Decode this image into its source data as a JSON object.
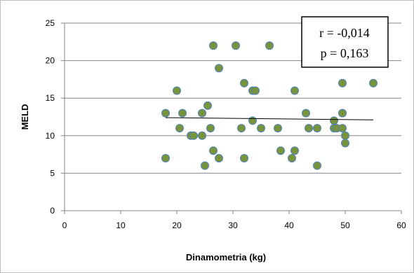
{
  "chart_data": {
    "type": "scatter",
    "title": "",
    "xlabel": "Dinamometria (kg)",
    "ylabel": "MELD",
    "xlim": [
      0,
      60
    ],
    "ylim": [
      0,
      25
    ],
    "x_ticks": [
      "0",
      "10",
      "20",
      "30",
      "40",
      "50",
      "60"
    ],
    "y_ticks": [
      "0",
      "5",
      "10",
      "15",
      "20",
      "25"
    ],
    "grid": "horizontal",
    "legend": "none",
    "marker_color": "#77933c",
    "marker_edge_color": "#4f81bd",
    "trendline": {
      "type": "linear",
      "x": [
        18,
        55
      ],
      "y": [
        12.4,
        12.1
      ],
      "color": "#000000"
    },
    "annotation": {
      "lines": [
        "r = -0,014",
        "p = 0,163"
      ],
      "placement": "top-right"
    },
    "points": [
      {
        "x": 18,
        "y": 13
      },
      {
        "x": 18,
        "y": 7
      },
      {
        "x": 20,
        "y": 16
      },
      {
        "x": 20.5,
        "y": 11
      },
      {
        "x": 21,
        "y": 13
      },
      {
        "x": 22.5,
        "y": 10
      },
      {
        "x": 23,
        "y": 10
      },
      {
        "x": 24.5,
        "y": 13
      },
      {
        "x": 24.5,
        "y": 10
      },
      {
        "x": 25,
        "y": 6
      },
      {
        "x": 25.5,
        "y": 14
      },
      {
        "x": 26,
        "y": 11
      },
      {
        "x": 26.5,
        "y": 22
      },
      {
        "x": 26.5,
        "y": 8
      },
      {
        "x": 27.5,
        "y": 19
      },
      {
        "x": 27.5,
        "y": 7
      },
      {
        "x": 30.5,
        "y": 22
      },
      {
        "x": 31.5,
        "y": 11
      },
      {
        "x": 32,
        "y": 17
      },
      {
        "x": 32,
        "y": 7
      },
      {
        "x": 33.5,
        "y": 12
      },
      {
        "x": 33.5,
        "y": 16
      },
      {
        "x": 34,
        "y": 16
      },
      {
        "x": 35,
        "y": 11
      },
      {
        "x": 36.5,
        "y": 22
      },
      {
        "x": 38,
        "y": 11
      },
      {
        "x": 38.5,
        "y": 8
      },
      {
        "x": 40.5,
        "y": 7
      },
      {
        "x": 41,
        "y": 16
      },
      {
        "x": 41,
        "y": 8
      },
      {
        "x": 43,
        "y": 13
      },
      {
        "x": 43.5,
        "y": 11
      },
      {
        "x": 45,
        "y": 11
      },
      {
        "x": 45,
        "y": 6
      },
      {
        "x": 48,
        "y": 12
      },
      {
        "x": 48,
        "y": 11
      },
      {
        "x": 48.5,
        "y": 11
      },
      {
        "x": 49.5,
        "y": 17
      },
      {
        "x": 49.5,
        "y": 13
      },
      {
        "x": 49.5,
        "y": 11
      },
      {
        "x": 50,
        "y": 10
      },
      {
        "x": 50,
        "y": 9
      },
      {
        "x": 55,
        "y": 17
      }
    ]
  }
}
